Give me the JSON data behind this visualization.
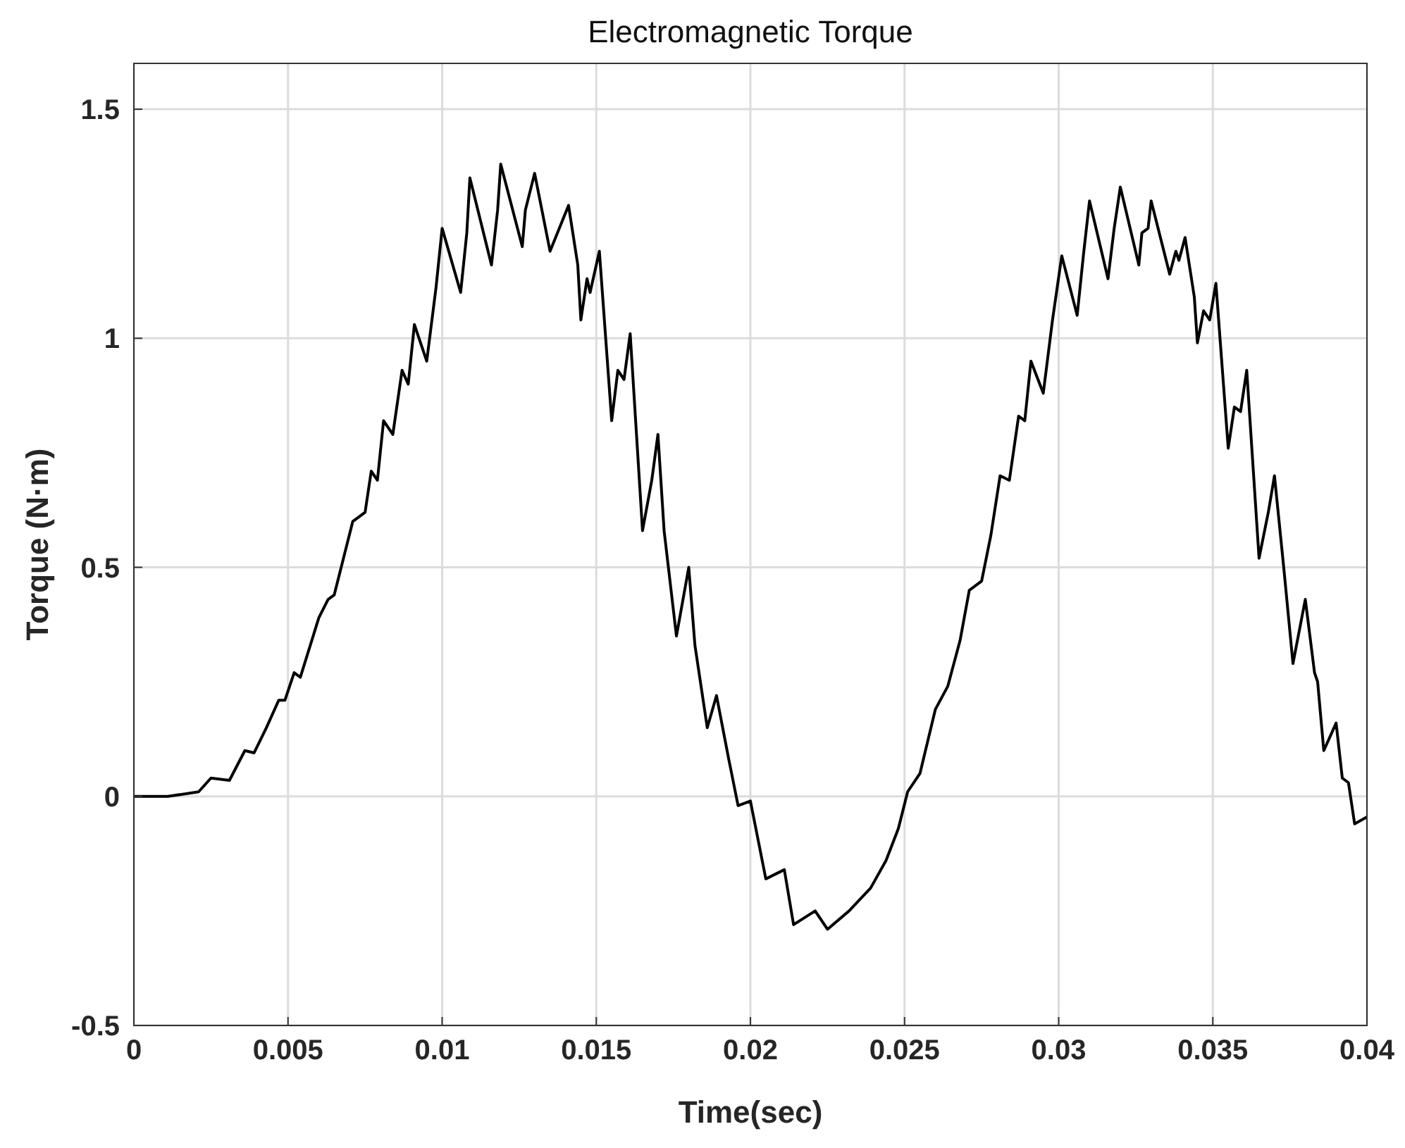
{
  "chart_data": {
    "type": "line",
    "title": "Electromagnetic Torque",
    "xlabel": "Time(sec)",
    "ylabel": "Torque (N·m)",
    "xlim": [
      0,
      0.04
    ],
    "ylim": [
      -0.5,
      1.6
    ],
    "xticks": [
      0,
      0.005,
      0.01,
      0.015,
      0.02,
      0.025,
      0.03,
      0.035,
      0.04
    ],
    "yticks": [
      -0.5,
      0,
      0.5,
      1,
      1.5
    ],
    "grid": true,
    "marker": "none",
    "line_style": "solid",
    "x": [
      0,
      0.0011,
      0.0021,
      0.0025,
      0.0031,
      0.0036,
      0.0039,
      0.0043,
      0.0047,
      0.0049,
      0.0052,
      0.0054,
      0.006,
      0.0063,
      0.0065,
      0.0068,
      0.0071,
      0.0075,
      0.0077,
      0.0079,
      0.0081,
      0.0084,
      0.0087,
      0.0089,
      0.0091,
      0.0095,
      0.0098,
      0.01,
      0.0106,
      0.0108,
      0.0109,
      0.0116,
      0.0118,
      0.0119,
      0.0126,
      0.0127,
      0.013,
      0.0135,
      0.0138,
      0.0141,
      0.0144,
      0.0145,
      0.0147,
      0.0148,
      0.0151,
      0.0155,
      0.0157,
      0.0159,
      0.0161,
      0.0165,
      0.0168,
      0.017,
      0.0172,
      0.0176,
      0.018,
      0.0182,
      0.0186,
      0.0189,
      0.0193,
      0.0196,
      0.02,
      0.0205,
      0.0211,
      0.0214,
      0.0221,
      0.0225,
      0.0232,
      0.0239,
      0.0244,
      0.0248,
      0.0251,
      0.0255,
      0.026,
      0.0264,
      0.0268,
      0.0271,
      0.0275,
      0.0278,
      0.0281,
      0.0284,
      0.0287,
      0.0289,
      0.0291,
      0.0295,
      0.0298,
      0.0301,
      0.0306,
      0.0308,
      0.031,
      0.0316,
      0.0318,
      0.032,
      0.0326,
      0.0327,
      0.0329,
      0.033,
      0.0336,
      0.0338,
      0.0339,
      0.0341,
      0.0344,
      0.0345,
      0.0347,
      0.0349,
      0.0351,
      0.0355,
      0.0357,
      0.0359,
      0.0361,
      0.0365,
      0.0368,
      0.037,
      0.0373,
      0.0376,
      0.038,
      0.0383,
      0.0384,
      0.0386,
      0.039,
      0.0392,
      0.0394,
      0.0396,
      0.04
    ],
    "series": [
      {
        "color": "#000000",
        "values": [
          0,
          0,
          0.01,
          0.04,
          0.035,
          0.1,
          0.095,
          0.15,
          0.21,
          0.21,
          0.27,
          0.26,
          0.39,
          0.43,
          0.44,
          0.52,
          0.6,
          0.62,
          0.71,
          0.69,
          0.82,
          0.79,
          0.93,
          0.9,
          1.03,
          0.95,
          1.11,
          1.24,
          1.1,
          1.23,
          1.35,
          1.16,
          1.28,
          1.38,
          1.2,
          1.28,
          1.36,
          1.19,
          1.24,
          1.29,
          1.16,
          1.04,
          1.13,
          1.1,
          1.19,
          0.82,
          0.93,
          0.91,
          1.01,
          0.58,
          0.69,
          0.79,
          0.58,
          0.35,
          0.5,
          0.33,
          0.15,
          0.22,
          0.08,
          -0.02,
          -0.01,
          -0.18,
          -0.16,
          -0.28,
          -0.25,
          -0.29,
          -0.25,
          -0.2,
          -0.14,
          -0.07,
          0.01,
          0.05,
          0.19,
          0.24,
          0.34,
          0.45,
          0.47,
          0.57,
          0.7,
          0.69,
          0.83,
          0.82,
          0.95,
          0.88,
          1.04,
          1.18,
          1.05,
          1.18,
          1.3,
          1.13,
          1.24,
          1.33,
          1.16,
          1.23,
          1.24,
          1.3,
          1.14,
          1.19,
          1.17,
          1.22,
          1.09,
          0.99,
          1.06,
          1.04,
          1.12,
          0.76,
          0.85,
          0.84,
          0.93,
          0.52,
          0.62,
          0.7,
          0.5,
          0.29,
          0.43,
          0.27,
          0.25,
          0.1,
          0.16,
          0.04,
          0.03,
          -0.06,
          -0.045
        ]
      }
    ]
  }
}
